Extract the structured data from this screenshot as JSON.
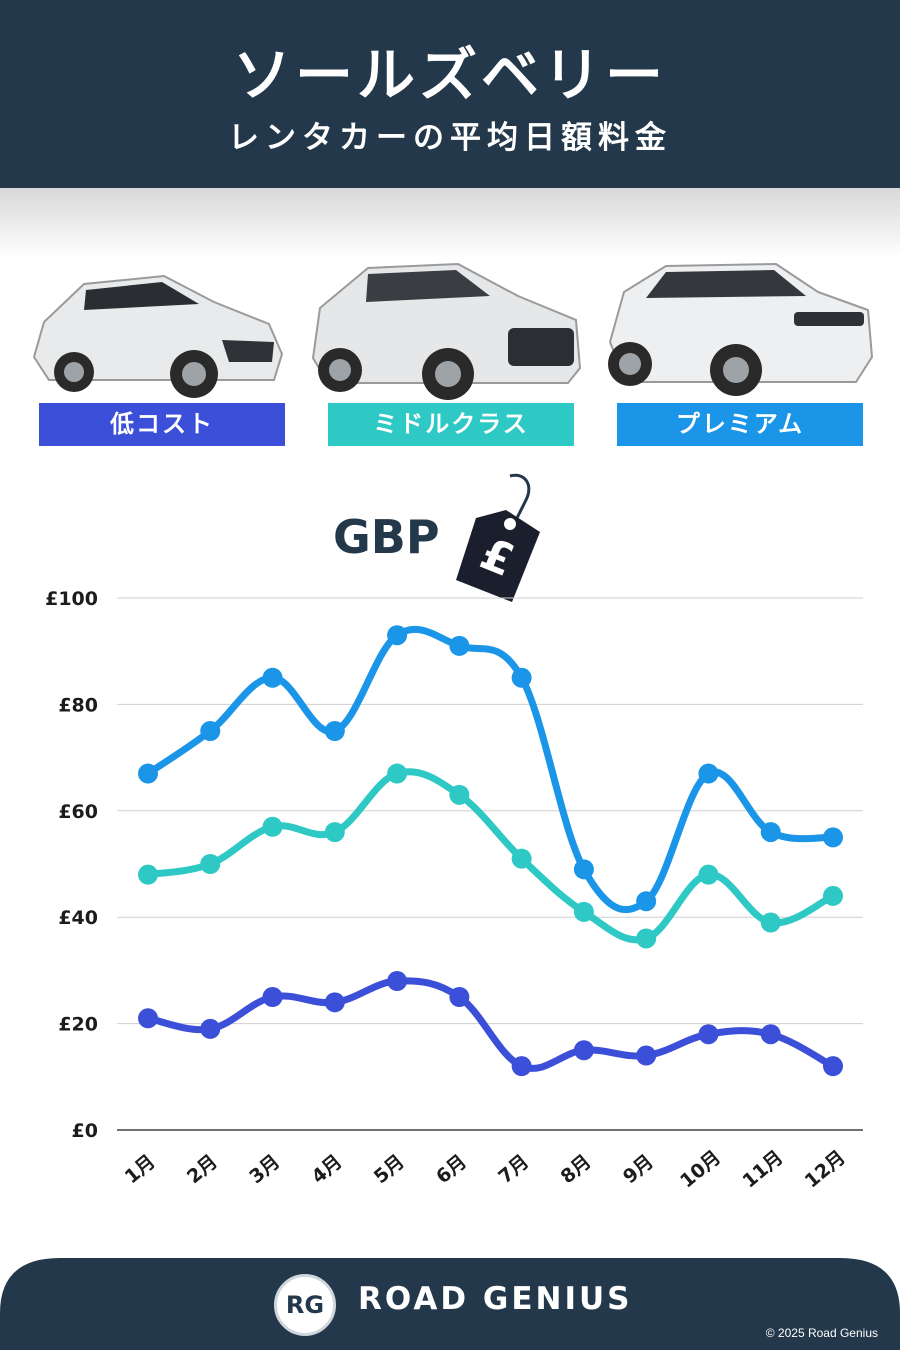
{
  "header": {
    "title": "ソールズベリー",
    "subtitle": "レンタカーの平均日額料金"
  },
  "categories_badges": [
    {
      "label": "低コスト",
      "color": "#3b4fd8"
    },
    {
      "label": "ミドルクラス",
      "color": "#2ec9c4"
    },
    {
      "label": "プレミアム",
      "color": "#1a95e8"
    }
  ],
  "currency": {
    "label": "GBP",
    "symbol": "£"
  },
  "chart_data": {
    "type": "line",
    "categories": [
      "1月",
      "2月",
      "3月",
      "4月",
      "5月",
      "6月",
      "7月",
      "8月",
      "9月",
      "10月",
      "11月",
      "12月"
    ],
    "series": [
      {
        "name": "プレミアム",
        "color": "#1a95e8",
        "values": [
          67,
          75,
          85,
          75,
          93,
          91,
          85,
          49,
          43,
          67,
          56,
          55
        ]
      },
      {
        "name": "ミドルクラス",
        "color": "#2ec9c4",
        "values": [
          48,
          50,
          57,
          56,
          67,
          63,
          51,
          41,
          36,
          48,
          39,
          44
        ]
      },
      {
        "name": "低コスト",
        "color": "#3b4fd8",
        "values": [
          21,
          19,
          25,
          24,
          28,
          25,
          12,
          15,
          14,
          18,
          18,
          12
        ]
      }
    ],
    "yticks": [
      "£0",
      "£20",
      "£40",
      "£60",
      "£80",
      "£100"
    ],
    "ylim": [
      0,
      100
    ],
    "grid": true
  },
  "footer": {
    "logo_text": "RG",
    "brand": "ROAD GENIUS",
    "copyright": "© 2025 Road Genius",
    "background": "#23394b"
  }
}
